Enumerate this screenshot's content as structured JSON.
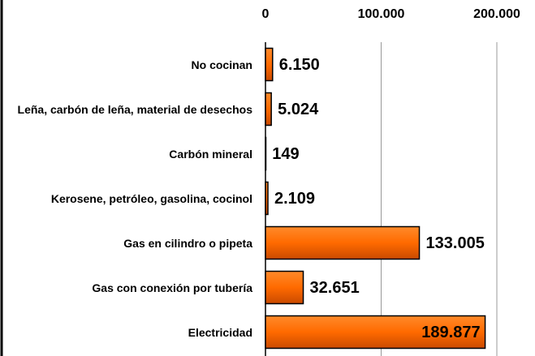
{
  "chart_data": {
    "type": "bar",
    "orientation": "horizontal",
    "categories": [
      "No cocinan",
      "Leña, carbón de leña, material de desechos",
      "Carbón mineral",
      "Kerosene, petróleo, gasolina, cocinol",
      "Gas en cilindro o pipeta",
      "Gas con conexión por tubería",
      "Electricidad"
    ],
    "values": [
      6150,
      5024,
      149,
      2109,
      133005,
      32651,
      189877
    ],
    "value_labels": [
      "6.150",
      "5.024",
      "149",
      "2.109",
      "133.005",
      "32.651",
      "189.877"
    ],
    "color": "#ff6600",
    "xlim": [
      0,
      200000
    ],
    "xticks": [
      0,
      {
        "value": 100000,
        "label": "100.000"
      },
      {
        "value": 200000,
        "label": "200.000"
      }
    ],
    "grid": true
  }
}
